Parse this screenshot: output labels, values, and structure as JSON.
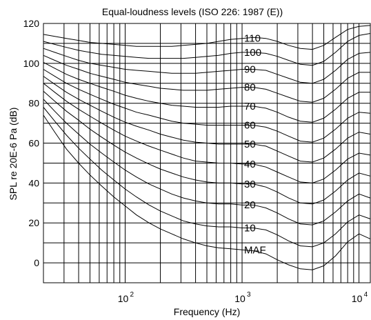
{
  "chart_data": {
    "type": "line",
    "title": "Equal-loudness levels (ISO 226: 1987 (E))",
    "xlabel": "Frequency (Hz)",
    "ylabel": "SPL re 20E-6 Pa (dB)",
    "xscale": "log",
    "xlim": [
      20,
      12500
    ],
    "ylim": [
      -10,
      120
    ],
    "grid": true,
    "x_tick_base": "10",
    "x_ticks": [
      {
        "value": 100,
        "exponent": "2"
      },
      {
        "value": 1000,
        "exponent": "3"
      },
      {
        "value": 10000,
        "exponent": "4"
      }
    ],
    "y_ticks": [
      0,
      20,
      40,
      60,
      80,
      100,
      120
    ],
    "y_grid_step": 10,
    "x": [
      20,
      25,
      31.5,
      40,
      50,
      63,
      80,
      100,
      125,
      160,
      200,
      250,
      315,
      400,
      500,
      630,
      800,
      1000,
      1250,
      1600,
      2000,
      2500,
      3150,
      4000,
      5000,
      6300,
      8000,
      10000,
      12500
    ],
    "series": [
      {
        "name": "MAF",
        "values": [
          74,
          65.5,
          57,
          50,
          44,
          38.5,
          33,
          28.5,
          24,
          20,
          17,
          14.5,
          12,
          10,
          8.5,
          7.5,
          7,
          6.5,
          6,
          4.5,
          1.5,
          -1,
          -3,
          -3.5,
          -1.5,
          3.5,
          10.5,
          14.5,
          12
        ]
      },
      {
        "name": "10",
        "values": [
          78,
          71,
          64,
          57.5,
          52,
          46.5,
          41.5,
          37,
          33,
          29,
          26,
          23.5,
          21,
          19.5,
          18.5,
          18,
          18,
          17.5,
          17.5,
          16.5,
          14,
          11,
          8.5,
          8,
          10,
          14.5,
          20.5,
          24,
          22
        ]
      },
      {
        "name": "20",
        "values": [
          82,
          76,
          70,
          64.5,
          59.5,
          55,
          50.5,
          46.5,
          43,
          39.5,
          37,
          34.5,
          32.5,
          31,
          30,
          29.5,
          29.5,
          29,
          29,
          27.5,
          25,
          22,
          19.5,
          19,
          21,
          25.5,
          31,
          34.5,
          32.5
        ]
      },
      {
        "name": "30",
        "values": [
          86,
          81,
          76,
          71.5,
          67,
          63,
          59,
          55.5,
          52.5,
          49.5,
          47,
          45,
          43,
          41.5,
          40.5,
          40,
          40,
          39.5,
          39.5,
          38,
          35.5,
          32.5,
          30,
          29.5,
          31.5,
          36,
          41.5,
          45,
          43.5
        ]
      },
      {
        "name": "40",
        "values": [
          90,
          85.5,
          81,
          77,
          73.5,
          70,
          66.5,
          63.5,
          61,
          58.5,
          56.5,
          54.5,
          52.5,
          51,
          50.5,
          50,
          50,
          49.5,
          49.5,
          48,
          45.5,
          43,
          40.5,
          40,
          42,
          46.5,
          52,
          55,
          54
        ]
      },
      {
        "name": "50",
        "values": [
          93.5,
          89.5,
          85.5,
          82,
          79,
          76,
          73,
          70.5,
          68.5,
          66.5,
          64.5,
          63,
          61.5,
          60.5,
          60,
          59.5,
          59.5,
          59.5,
          59.5,
          58.5,
          56,
          53.5,
          51,
          50.5,
          52.5,
          57,
          62.5,
          65.5,
          64.5
        ]
      },
      {
        "name": "60",
        "values": [
          97,
          93.5,
          90,
          87,
          84.5,
          82,
          79.5,
          77.5,
          75.5,
          74,
          72.5,
          71,
          70,
          69.5,
          69,
          69,
          69,
          69,
          69,
          68,
          66,
          63.5,
          61,
          60.5,
          62.5,
          67,
          72.5,
          75.5,
          75
        ]
      },
      {
        "name": "70",
        "values": [
          100.5,
          97.5,
          94.5,
          92,
          90,
          88,
          86,
          84,
          82.5,
          81,
          80,
          79,
          78.5,
          78,
          78,
          78,
          78.5,
          78.5,
          78.5,
          77.5,
          75.5,
          73,
          71,
          70.5,
          72.5,
          77,
          82.5,
          85.5,
          85.5
        ]
      },
      {
        "name": "80",
        "values": [
          104,
          101.5,
          99,
          97,
          95,
          93.5,
          92,
          90.5,
          89.5,
          88.5,
          87.5,
          87,
          86.5,
          86.5,
          86.5,
          87,
          87.5,
          88,
          88,
          87,
          85,
          83,
          81,
          80.5,
          82.5,
          87,
          92.5,
          95.5,
          95.5
        ]
      },
      {
        "name": "90",
        "values": [
          107.5,
          105.5,
          103.5,
          101.5,
          100,
          99,
          98,
          97,
          96.5,
          96,
          95.5,
          95,
          95,
          95,
          95.5,
          96,
          96.5,
          97,
          97,
          96.5,
          94.5,
          92.5,
          90.5,
          90,
          92,
          96.5,
          102,
          105,
          105.5
        ]
      },
      {
        "name": "100",
        "values": [
          111,
          109.5,
          108,
          106.5,
          105.5,
          104.5,
          104,
          103.5,
          103,
          102.5,
          102.5,
          102.5,
          102.5,
          103,
          103.5,
          104,
          105,
          105.5,
          105.5,
          105,
          103.5,
          101.5,
          99.5,
          99,
          101,
          105.5,
          111,
          114,
          115
        ]
      },
      {
        "name": "110",
        "values": [
          114.5,
          113.5,
          112.5,
          111.5,
          110.5,
          110,
          109.5,
          109,
          108.5,
          108.5,
          108.5,
          108.5,
          109,
          109.5,
          110,
          111,
          112,
          112.5,
          113,
          112.5,
          111,
          109,
          107.5,
          107,
          109,
          113,
          117,
          118.5,
          119
        ]
      }
    ]
  }
}
